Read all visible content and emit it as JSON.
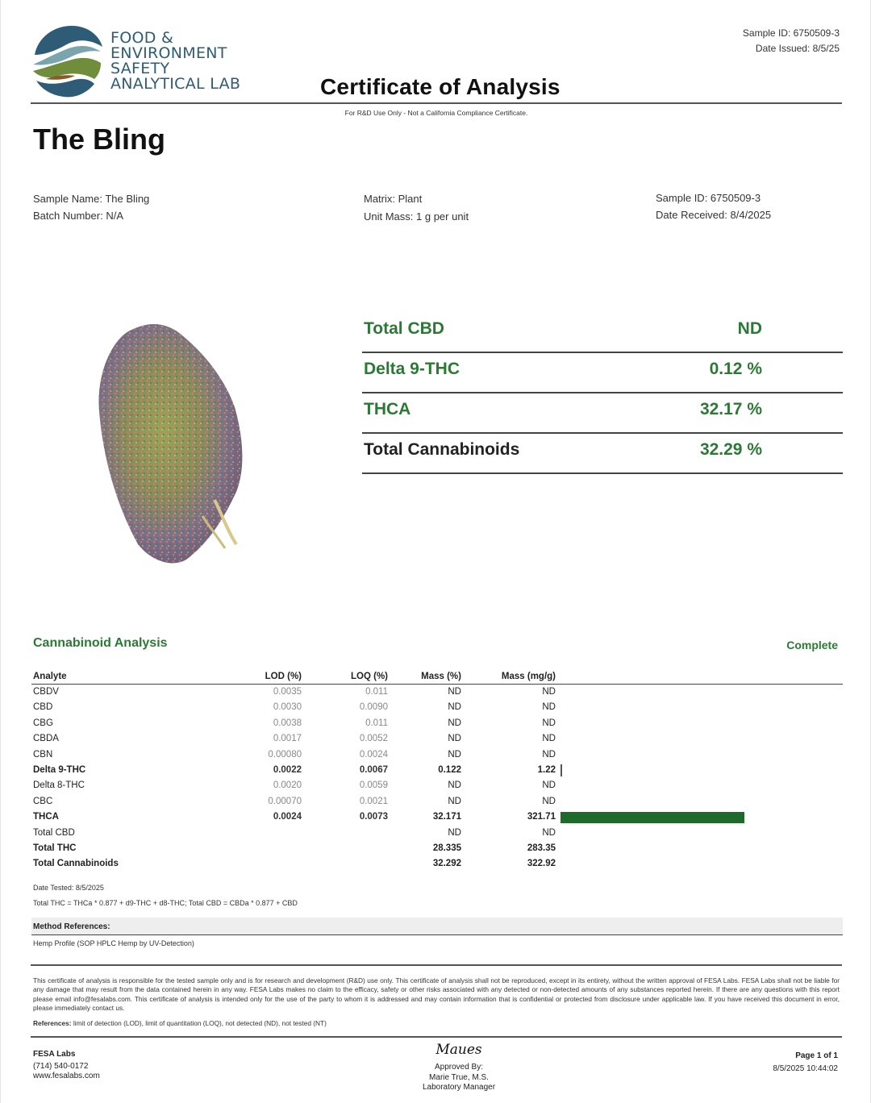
{
  "header": {
    "logo_lines": [
      "FOOD &",
      "ENVIRONMENT",
      "SAFETY",
      "ANALYTICAL LAB"
    ],
    "title": "Certificate of Analysis",
    "sample_id": "Sample ID: 6750509-3",
    "date_issued": "Date Issued: 8/5/25",
    "rd_note": "For R&D Use Only - Not a California Compliance Certificate."
  },
  "product": {
    "name": "The Bling"
  },
  "info": {
    "sample_name": "Sample Name: The Bling",
    "batch_number": "Batch Number: N/A",
    "matrix": "Matrix: Plant",
    "unit_mass": "Unit Mass: 1 g per unit",
    "sample_id": "Sample ID: 6750509-3",
    "date_received": "Date Received: 8/4/2025"
  },
  "summary": [
    {
      "label": "Total CBD",
      "value": "ND"
    },
    {
      "label": "Delta 9-THC",
      "value": "0.12 %"
    },
    {
      "label": "THCA",
      "value": "32.17 %"
    },
    {
      "label": "Total Cannabinoids",
      "value": "32.29 %"
    }
  ],
  "analysis": {
    "title": "Cannabinoid Analysis",
    "status": "Complete",
    "headers": {
      "analyte": "Analyte",
      "lod": "LOD (%)",
      "loq": "LOQ (%)",
      "mass_pct": "Mass (%)",
      "mass_mg": "Mass (mg/g)"
    },
    "rows": [
      {
        "analyte": "CBDV",
        "lod": "0.0035",
        "loq": "0.011",
        "mass_pct": "ND",
        "mass_mg": "ND"
      },
      {
        "analyte": "CBD",
        "lod": "0.0030",
        "loq": "0.0090",
        "mass_pct": "ND",
        "mass_mg": "ND"
      },
      {
        "analyte": "CBG",
        "lod": "0.0038",
        "loq": "0.011",
        "mass_pct": "ND",
        "mass_mg": "ND"
      },
      {
        "analyte": "CBDA",
        "lod": "0.0017",
        "loq": "0.0052",
        "mass_pct": "ND",
        "mass_mg": "ND"
      },
      {
        "analyte": "CBN",
        "lod": "0.00080",
        "loq": "0.0024",
        "mass_pct": "ND",
        "mass_mg": "ND"
      },
      {
        "analyte": "Delta 9-THC",
        "lod": "0.0022",
        "loq": "0.0067",
        "mass_pct": "0.122",
        "mass_mg": "1.22"
      },
      {
        "analyte": "Delta 8-THC",
        "lod": "0.0020",
        "loq": "0.0059",
        "mass_pct": "ND",
        "mass_mg": "ND"
      },
      {
        "analyte": "CBC",
        "lod": "0.00070",
        "loq": "0.0021",
        "mass_pct": "ND",
        "mass_mg": "ND"
      },
      {
        "analyte": "THCA",
        "lod": "0.0024",
        "loq": "0.0073",
        "mass_pct": "32.171",
        "mass_mg": "321.71"
      },
      {
        "analyte": "Total CBD",
        "lod": "",
        "loq": "",
        "mass_pct": "ND",
        "mass_mg": "ND"
      },
      {
        "analyte": "Total THC",
        "lod": "",
        "loq": "",
        "mass_pct": "28.335",
        "mass_mg": "283.35"
      },
      {
        "analyte": "Total Cannabinoids",
        "lod": "",
        "loq": "",
        "mass_pct": "32.292",
        "mass_mg": "322.92"
      }
    ],
    "bar_fraction_of_max": {
      "Delta 9-THC": 0.0038,
      "THCA": 1.0
    },
    "bar_color": "#1e6a2a",
    "date_tested": "Date Tested: 8/5/2025",
    "formula": "Total THC = THCa * 0.877 + d9-THC + d8-THC; Total CBD = CBDa * 0.877 + CBD"
  },
  "method": {
    "label": "Method References:",
    "text": "Hemp Profile (SOP HPLC Hemp by UV-Detection)"
  },
  "disclaimer": "This certificate of analysis is responsible for the tested sample only and is for research and development (R&D) use only. This certificate of analysis shall not be reproduced, except in its entirety, without the written approval of FESA Labs. FESA Labs shall not be liable for any damage that may result from the data contained herein in any way. FESA Labs makes no claim to the efficacy, safety or other risks associated with any detected or non-detected amounts of any substances reported herein. If there are any questions with this report please email info@fesalabs.com. This certificate of analysis is intended only for the use of the party to whom it is addressed and may contain information that is confidential or protected from disclosure under applicable law. If you have received this document in error, please immediately contact us.",
  "references": {
    "label": "References:",
    "text": "limit of detection (LOD), limit of quantitation (LOQ), not detected (ND), not tested (NT)"
  },
  "footer": {
    "company": "FESA Labs",
    "phone": "(714) 540-0172",
    "website": "www.fesalabs.com",
    "signature": "Maues",
    "approved_by": "Approved By:",
    "approver": "Marie True, M.S.",
    "approver_title": "Laboratory Manager",
    "page": "Page 1 of 1",
    "timestamp": "8/5/2025 10:44:02"
  },
  "colors": {
    "accent_green": "#2b7a34",
    "logo_blue": "#2e5c77"
  }
}
